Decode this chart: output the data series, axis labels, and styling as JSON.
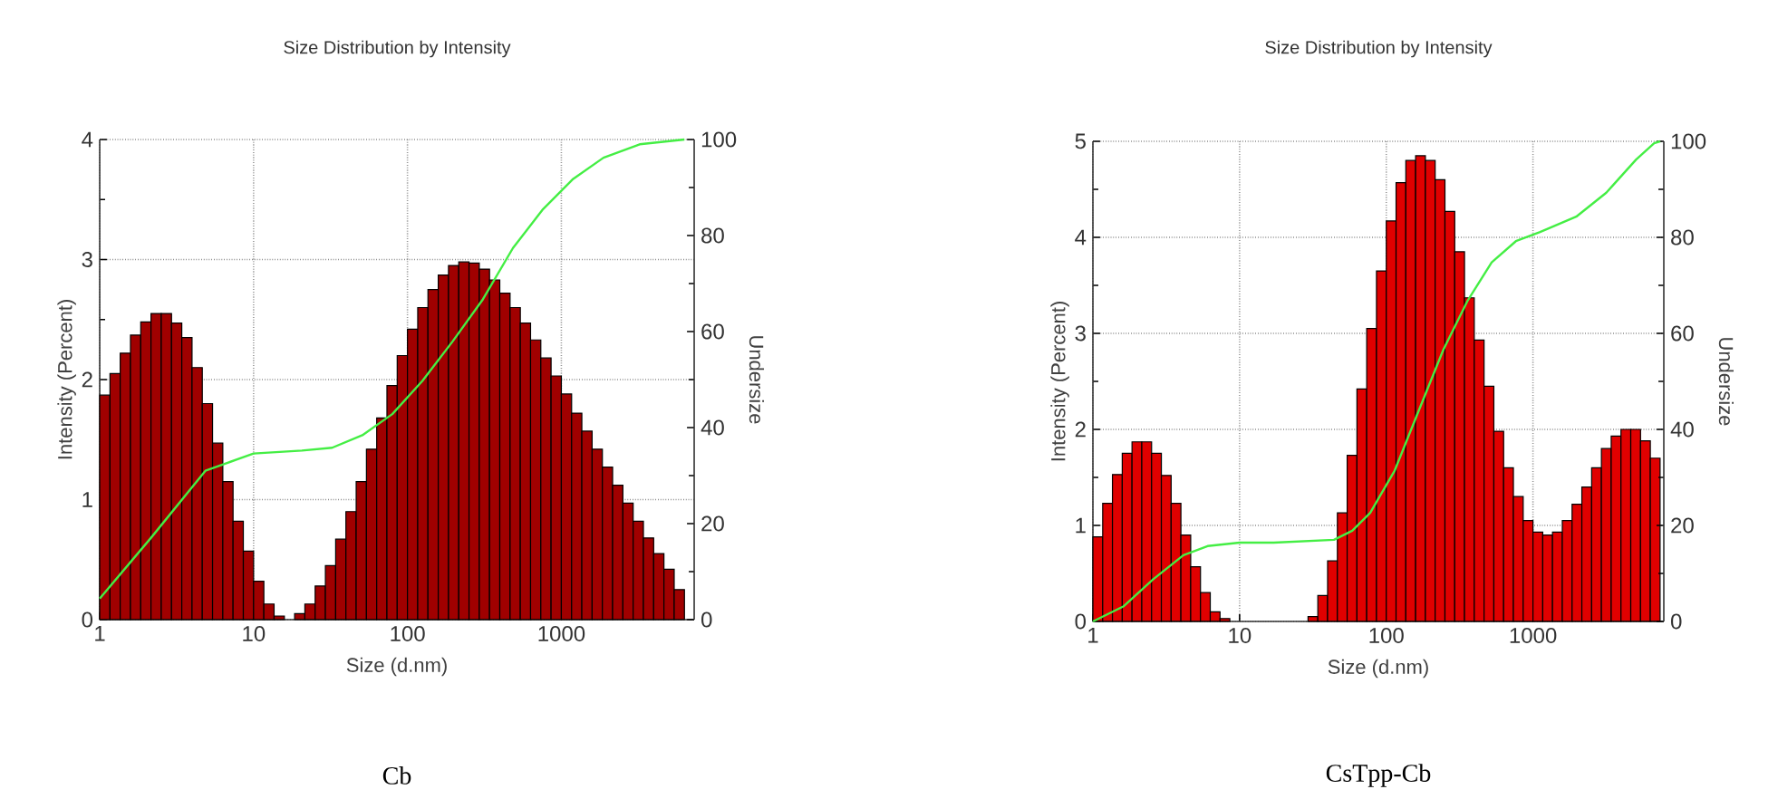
{
  "chart_data": [
    {
      "type": "histogram",
      "title": "Size Distribution by Intensity",
      "xlabel": "Size (d.nm)",
      "ylabel": "Intensity (Percent)",
      "y2label": "Undersize",
      "annotations": [
        "Cb"
      ],
      "log": "x",
      "grid": true,
      "xlim": [
        1,
        7300
      ],
      "xticks": [
        1,
        10,
        100,
        1000
      ],
      "ylim": [
        0,
        4
      ],
      "yticks": [
        0,
        {
          "value": 0.5,
          "label": null
        },
        1,
        {
          "value": 1.5,
          "label": null
        },
        2,
        {
          "value": 2.5,
          "label": null
        },
        3,
        {
          "value": 3.5,
          "label": null
        },
        4
      ],
      "y2lim": [
        0,
        100
      ],
      "y2ticks": [
        0,
        {
          "value": 10,
          "label": null
        },
        20,
        {
          "value": 30,
          "label": null
        },
        40,
        {
          "value": 50,
          "label": null
        },
        60,
        {
          "value": 70,
          "label": null
        },
        80,
        {
          "value": 90,
          "label": null
        },
        100
      ],
      "bins": [
        1,
        1.166,
        1.359,
        1.585,
        1.848,
        2.154,
        2.512,
        2.929,
        3.415,
        3.981,
        4.642,
        5.412,
        6.31,
        7.356,
        8.577,
        10,
        11.66,
        13.59,
        15.85,
        18.48,
        21.54,
        25.12,
        29.29,
        34.15,
        39.81,
        46.42,
        54.12,
        63.1,
        73.56,
        85.77,
        100,
        116.6,
        135.9,
        158.5,
        184.8,
        215.4,
        251.2,
        292.9,
        341.5,
        398.1,
        464.2,
        541.2,
        631,
        735.6,
        857.7,
        1000,
        1166,
        1359,
        1585,
        1848,
        2154,
        2512,
        2929,
        3415,
        3981,
        4642,
        5412,
        6310
      ],
      "series": [
        {
          "color": "#a00000",
          "values": [
            1.87,
            2.05,
            2.22,
            2.37,
            2.48,
            2.55,
            2.55,
            2.47,
            2.35,
            2.1,
            1.8,
            1.47,
            1.15,
            0.82,
            0.57,
            0.32,
            0.13,
            0.03,
            0,
            0.05,
            0.13,
            0.28,
            0.45,
            0.67,
            0.9,
            1.15,
            1.42,
            1.68,
            1.95,
            2.2,
            2.42,
            2.6,
            2.75,
            2.87,
            2.95,
            2.98,
            2.97,
            2.92,
            2.83,
            2.72,
            2.6,
            2.47,
            2.33,
            2.18,
            2.03,
            1.88,
            1.72,
            1.57,
            1.42,
            1.27,
            1.12,
            0.97,
            0.82,
            0.68,
            0.55,
            0.42,
            0.25
          ]
        },
        {
          "type": "line",
          "axis": "y2",
          "color": "#44ee44",
          "x": [
            1,
            2.15,
            4.86,
            10,
            20.6,
            32.4,
            50.9,
            79.7,
            125,
            196,
            309,
            485,
            761,
            1195,
            1878,
            3230,
            6310
          ],
          "values": [
            4.4,
            17,
            31,
            34.6,
            35.2,
            35.8,
            38.4,
            42.8,
            49.7,
            57.9,
            66.7,
            77.4,
            85.5,
            91.8,
            96.2,
            99,
            100
          ]
        }
      ]
    },
    {
      "type": "histogram",
      "title": "Size Distribution by Intensity",
      "xlabel": "Size (d.nm)",
      "ylabel": "Intensity (Percent)",
      "y2label": "Undersize",
      "annotations": [
        "CsTpp-Cb"
      ],
      "log": "x",
      "grid": true,
      "xlim": [
        1,
        7800
      ],
      "xticks": [
        1,
        10,
        100,
        1000
      ],
      "ylim": [
        0,
        5
      ],
      "yticks": [
        0,
        {
          "value": 0.5,
          "label": null
        },
        1,
        {
          "value": 1.5,
          "label": null
        },
        2,
        {
          "value": 2.5,
          "label": null
        },
        3,
        {
          "value": 3.5,
          "label": null
        },
        4,
        {
          "value": 4.5,
          "label": null
        },
        5
      ],
      "y2lim": [
        0,
        100
      ],
      "y2ticks": [
        0,
        {
          "value": 10,
          "label": null
        },
        20,
        {
          "value": 30,
          "label": null
        },
        40,
        {
          "value": 50,
          "label": null
        },
        60,
        {
          "value": 70,
          "label": null
        },
        80,
        {
          "value": 90,
          "label": null
        },
        100
      ],
      "bins": [
        1,
        1.166,
        1.359,
        1.585,
        1.848,
        2.154,
        2.512,
        2.929,
        3.415,
        3.981,
        4.642,
        5.412,
        6.31,
        7.356,
        8.577,
        10,
        11.66,
        13.59,
        15.85,
        18.48,
        21.54,
        25.12,
        29.29,
        34.15,
        39.81,
        46.42,
        54.12,
        63.1,
        73.56,
        85.77,
        100,
        116.6,
        135.9,
        158.5,
        184.8,
        215.4,
        251.2,
        292.9,
        341.5,
        398.1,
        464.2,
        541.2,
        631,
        735.6,
        857.7,
        1000,
        1166,
        1359,
        1585,
        1848,
        2154,
        2512,
        2929,
        3415,
        3981,
        4642,
        5412,
        6310,
        7356
      ],
      "series": [
        {
          "color": "#e00000",
          "values": [
            0.88,
            1.23,
            1.53,
            1.75,
            1.87,
            1.87,
            1.75,
            1.52,
            1.23,
            0.9,
            0.57,
            0.3,
            0.1,
            0.03,
            0,
            0,
            0,
            0,
            0,
            0,
            0,
            0,
            0.05,
            0.27,
            0.63,
            1.13,
            1.73,
            2.42,
            3.05,
            3.65,
            4.17,
            4.57,
            4.8,
            4.85,
            4.8,
            4.6,
            4.27,
            3.85,
            3.37,
            2.93,
            2.45,
            1.98,
            1.6,
            1.3,
            1.05,
            0.93,
            0.9,
            0.93,
            1.05,
            1.22,
            1.4,
            1.6,
            1.8,
            1.93,
            2.0,
            2.0,
            1.88,
            1.7
          ]
        },
        {
          "type": "line",
          "axis": "y2",
          "color": "#44ee44",
          "x": [
            1,
            1.61,
            2.58,
            4.14,
            6.05,
            10,
            17.1,
            44,
            58.6,
            77.7,
            114,
            167,
            245,
            357,
            523,
            765,
            1118,
            1972,
            3160,
            5050,
            6700,
            7356
          ],
          "values": [
            0,
            3.1,
            8.8,
            13.8,
            15.7,
            16.4,
            16.4,
            17,
            18.9,
            22.6,
            31.4,
            44,
            56.6,
            66.7,
            74.8,
            79.2,
            81.1,
            84.3,
            89.3,
            96.2,
            99.6,
            100
          ]
        }
      ]
    }
  ]
}
